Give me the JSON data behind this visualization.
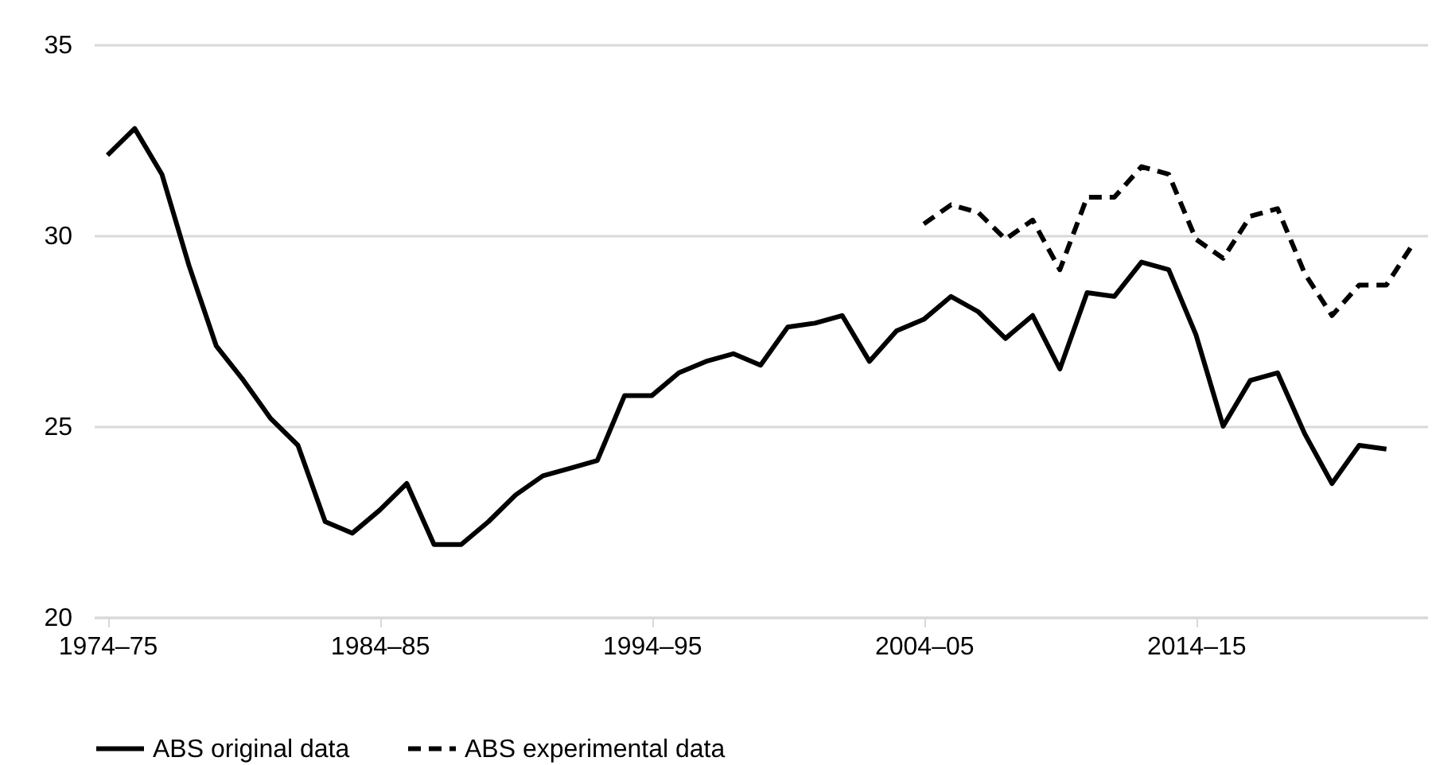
{
  "chart_data": {
    "type": "line",
    "categories": [
      "1974–75",
      null,
      null,
      null,
      null,
      null,
      null,
      null,
      null,
      null,
      "1984–85",
      null,
      null,
      null,
      null,
      null,
      null,
      null,
      null,
      null,
      "1994–95",
      null,
      null,
      null,
      null,
      null,
      null,
      null,
      null,
      null,
      "2004–05",
      null,
      null,
      null,
      null,
      null,
      null,
      null,
      null,
      null,
      "2014–15",
      null,
      null,
      null,
      null,
      null,
      null,
      null,
      null
    ],
    "series": [
      {
        "name": "ABS original data",
        "color": "#000000",
        "line_style": "solid",
        "values": [
          32.1,
          32.8,
          31.6,
          29.2,
          27.1,
          26.2,
          25.2,
          24.5,
          22.5,
          22.2,
          22.8,
          23.5,
          21.9,
          21.9,
          22.5,
          23.2,
          23.7,
          23.9,
          24.1,
          25.8,
          25.8,
          26.4,
          26.7,
          26.9,
          26.6,
          27.6,
          27.7,
          27.9,
          26.7,
          27.5,
          27.8,
          28.4,
          28.0,
          27.3,
          27.9,
          26.5,
          28.5,
          28.4,
          29.3,
          29.1,
          27.4,
          25.0,
          26.2,
          26.4,
          24.8,
          23.5,
          24.5,
          24.4,
          null
        ]
      },
      {
        "name": "ABS experimental data",
        "color": "#000000",
        "line_style": "dashed",
        "values": [
          null,
          null,
          null,
          null,
          null,
          null,
          null,
          null,
          null,
          null,
          null,
          null,
          null,
          null,
          null,
          null,
          null,
          null,
          null,
          null,
          null,
          null,
          null,
          null,
          null,
          null,
          null,
          null,
          null,
          null,
          30.3,
          30.8,
          30.6,
          29.9,
          30.4,
          29.1,
          31.0,
          31.0,
          31.8,
          31.6,
          29.9,
          29.4,
          30.5,
          30.7,
          29.0,
          27.9,
          28.7,
          28.7,
          29.8
        ]
      }
    ],
    "ylim": [
      20,
      35
    ],
    "yticks": [
      20,
      25,
      30,
      35
    ],
    "grid": "y",
    "legend": "bottom"
  }
}
